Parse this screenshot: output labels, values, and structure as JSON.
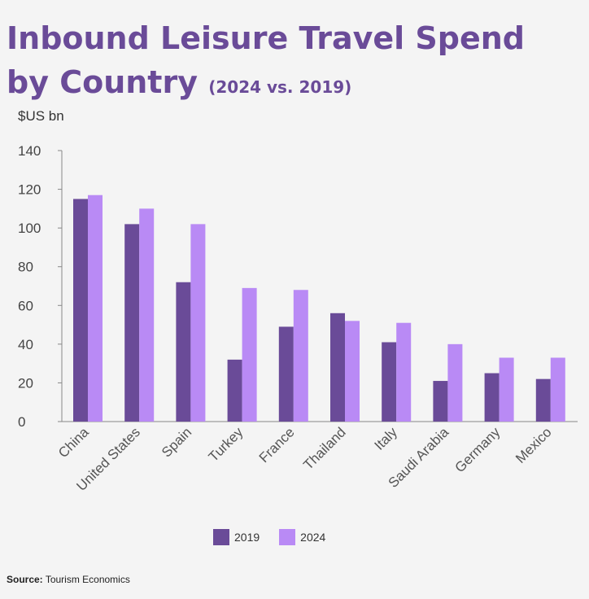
{
  "header": {
    "title": "Inbound Leisure Travel Spend by Country",
    "subtitle": "(2024 vs. 2019)"
  },
  "chart_data": {
    "type": "bar",
    "title": "Inbound Leisure Travel Spend by Country",
    "subtitle": "(2024 vs. 2019)",
    "ylabel": "$US bn",
    "xlabel": "",
    "ylim": [
      0,
      140
    ],
    "yticks": [
      "0",
      "20",
      "40",
      "60",
      "80",
      "100",
      "120",
      "140"
    ],
    "categories": [
      "China",
      "United States",
      "Spain",
      "Turkey",
      "France",
      "Thailand",
      "Italy",
      "Saudi Arabia",
      "Germany",
      "Mexico"
    ],
    "series": [
      {
        "name": "2019",
        "color": "#6a4b98",
        "values": [
          115,
          102,
          72,
          32,
          49,
          56,
          41,
          21,
          25,
          22
        ]
      },
      {
        "name": "2024",
        "color": "#b98af5",
        "values": [
          117,
          110,
          102,
          69,
          68,
          52,
          51,
          40,
          33,
          33
        ]
      }
    ],
    "grid": false,
    "legend": "bottom-center"
  },
  "source": {
    "label": "Source:",
    "text": "Tourism Economics"
  }
}
